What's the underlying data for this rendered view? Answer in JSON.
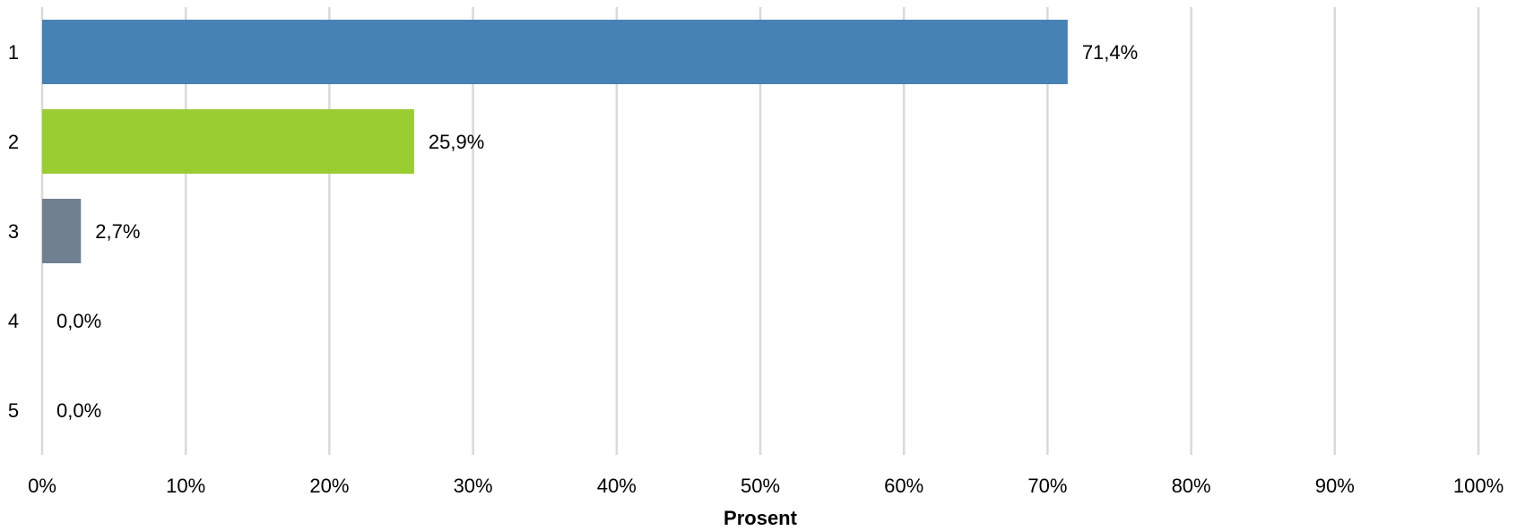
{
  "chart_data": {
    "type": "bar",
    "orientation": "horizontal",
    "categories": [
      "1",
      "2",
      "3",
      "4",
      "5"
    ],
    "values": [
      71.4,
      25.9,
      2.7,
      0.0,
      0.0
    ],
    "value_labels": [
      "71,4%",
      "25,9%",
      "2,7%",
      "0,0%",
      "0,0%"
    ],
    "bar_colors": [
      "#4682b4",
      "#9acd32",
      "#708090",
      "#708090",
      "#708090"
    ],
    "xlabel": "Prosent",
    "ylabel": "",
    "title": "",
    "xlim": [
      0,
      100
    ],
    "x_ticks": [
      0,
      10,
      20,
      30,
      40,
      50,
      60,
      70,
      80,
      90,
      100
    ],
    "x_tick_labels": [
      "0%",
      "10%",
      "20%",
      "30%",
      "40%",
      "50%",
      "60%",
      "70%",
      "80%",
      "90%",
      "100%"
    ],
    "grid": "vertical",
    "legend": "none"
  }
}
